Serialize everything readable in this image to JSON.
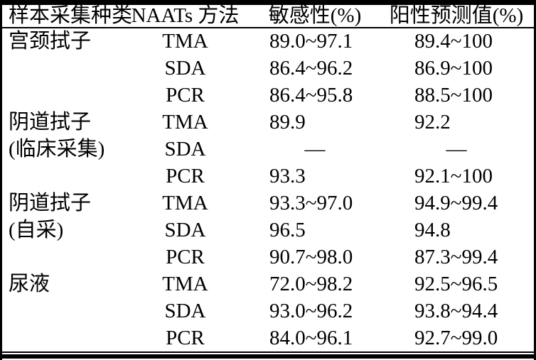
{
  "chart_data": {
    "type": "table",
    "title": "",
    "columns": [
      "样本采集种类",
      "NAATs 方法",
      "敏感性(%)",
      "阳性预测值(%)"
    ],
    "rows": [
      [
        "宫颈拭子",
        "TMA",
        "89.0~97.1",
        "89.4~100"
      ],
      [
        "",
        "SDA",
        "86.4~96.2",
        "86.9~100"
      ],
      [
        "",
        "PCR",
        "86.4~95.8",
        "88.5~100"
      ],
      [
        "阴道拭子",
        "TMA",
        "89.9",
        "92.2"
      ],
      [
        "(临床采集)",
        "SDA",
        "—",
        "—"
      ],
      [
        "",
        "PCR",
        "93.3",
        "92.1~100"
      ],
      [
        "阴道拭子",
        "TMA",
        "93.3~97.0",
        "94.9~99.4"
      ],
      [
        "(自采)",
        "SDA",
        "96.5",
        "94.8"
      ],
      [
        "",
        "PCR",
        "90.7~98.0",
        "87.3~99.4"
      ],
      [
        "尿液",
        "TMA",
        "72.0~98.2",
        "92.5~96.5"
      ],
      [
        "",
        "SDA",
        "93.0~96.2",
        "93.8~94.4"
      ],
      [
        "",
        "PCR",
        "84.0~96.1",
        "92.7~99.0"
      ]
    ],
    "sample_groups": [
      {
        "label": "宫颈拭子",
        "sublabel": "",
        "methods": [
          "TMA",
          "SDA",
          "PCR"
        ]
      },
      {
        "label": "阴道拭子",
        "sublabel": "(临床采集)",
        "methods": [
          "TMA",
          "SDA",
          "PCR"
        ]
      },
      {
        "label": "阴道拭子",
        "sublabel": "(自采)",
        "methods": [
          "TMA",
          "SDA",
          "PCR"
        ]
      },
      {
        "label": "尿液",
        "sublabel": "",
        "methods": [
          "TMA",
          "SDA",
          "PCR"
        ]
      }
    ],
    "missing_value_marker": "—",
    "layout": {
      "style": "three-line-table",
      "grid": "off",
      "internal_vertical_rules": "none"
    }
  },
  "colors": {
    "text": "#000000",
    "background": "#ffffff",
    "rule": "#000000"
  }
}
